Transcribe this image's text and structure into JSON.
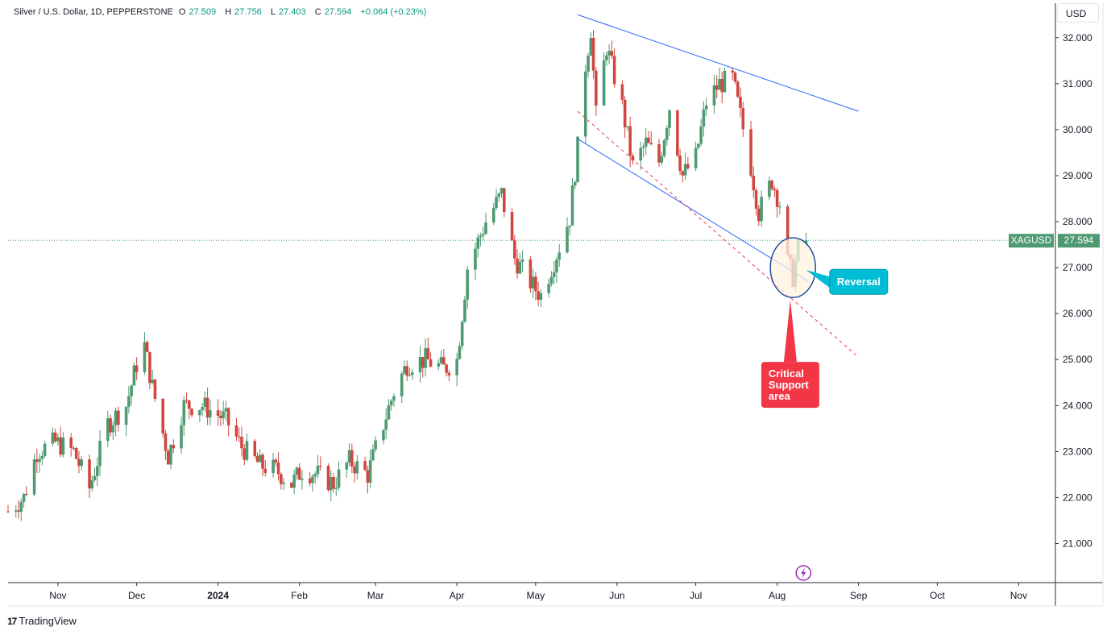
{
  "header": {
    "symbol_title": "Silver / U.S. Dollar, 1D, PEPPERSTONE",
    "open_label": "O",
    "open_value": "27.509",
    "high_label": "H",
    "high_value": "27.756",
    "low_label": "L",
    "low_value": "27.403",
    "close_label": "C",
    "close_value": "27.594",
    "change": "+0.064 (+0.23%)"
  },
  "currency_button": "USD",
  "branding": "TradingView",
  "colors": {
    "up": "#4f9a73",
    "down": "#d0473f",
    "trendline": "#2962ff",
    "support_dashed": "#f23645",
    "reversal_callout": "#00bcd4",
    "support_callout": "#f23645",
    "last_price_tag": "#4f9a73"
  },
  "chart_data": {
    "type": "candlestick",
    "symbol": "XAGUSD",
    "last_price": "27.594",
    "y_ticks": [
      "32.000",
      "31.000",
      "30.000",
      "29.000",
      "28.000",
      "27.000",
      "26.000",
      "25.000",
      "24.000",
      "23.000",
      "22.000",
      "21.000"
    ],
    "ylim": [
      20.15,
      32.75
    ],
    "x_ticks": [
      "Nov",
      "Dec",
      "2024",
      "Feb",
      "Mar",
      "Apr",
      "May",
      "Jun",
      "Jul",
      "Aug",
      "Sep",
      "Oct",
      "Nov"
    ],
    "x_range": [
      "2023-10-13",
      "2024-11-15"
    ],
    "price_path": [
      [
        "2023-10-13",
        21.7
      ],
      [
        "2023-10-19",
        22.0
      ],
      [
        "2023-10-24",
        23.0
      ],
      [
        "2023-10-31",
        23.2
      ],
      [
        "2023-11-07",
        23.0
      ],
      [
        "2023-11-13",
        22.2
      ],
      [
        "2023-11-20",
        23.6
      ],
      [
        "2023-11-27",
        24.0
      ],
      [
        "2023-12-01",
        24.9
      ],
      [
        "2023-12-04",
        25.3
      ],
      [
        "2023-12-07",
        24.4
      ],
      [
        "2023-12-13",
        22.9
      ],
      [
        "2023-12-19",
        24.0
      ],
      [
        "2023-12-26",
        24.0
      ],
      [
        "2024-01-04",
        23.7
      ],
      [
        "2024-01-10",
        23.1
      ],
      [
        "2024-01-17",
        22.7
      ],
      [
        "2024-01-23",
        22.6
      ],
      [
        "2024-01-29",
        22.3
      ],
      [
        "2024-02-02",
        22.6
      ],
      [
        "2024-02-08",
        22.5
      ],
      [
        "2024-02-14",
        22.3
      ],
      [
        "2024-02-20",
        22.8
      ],
      [
        "2024-02-27",
        22.5
      ],
      [
        "2024-03-04",
        23.6
      ],
      [
        "2024-03-08",
        24.3
      ],
      [
        "2024-03-13",
        24.9
      ],
      [
        "2024-03-20",
        25.0
      ],
      [
        "2024-03-27",
        24.8
      ],
      [
        "2024-04-01",
        25.0
      ],
      [
        "2024-04-05",
        27.0
      ],
      [
        "2024-04-12",
        28.0
      ],
      [
        "2024-04-18",
        28.6
      ],
      [
        "2024-04-23",
        27.2
      ],
      [
        "2024-04-30",
        26.6
      ],
      [
        "2024-05-03",
        26.4
      ],
      [
        "2024-05-09",
        27.3
      ],
      [
        "2024-05-14",
        28.1
      ],
      [
        "2024-05-17",
        29.6
      ],
      [
        "2024-05-20",
        31.4
      ],
      [
        "2024-05-22",
        32.2
      ],
      [
        "2024-05-24",
        30.3
      ],
      [
        "2024-05-28",
        31.8
      ],
      [
        "2024-06-03",
        30.5
      ],
      [
        "2024-06-07",
        29.2
      ],
      [
        "2024-06-12",
        29.7
      ],
      [
        "2024-06-17",
        29.3
      ],
      [
        "2024-06-21",
        30.5
      ],
      [
        "2024-06-26",
        29.0
      ],
      [
        "2024-07-01",
        29.4
      ],
      [
        "2024-07-05",
        30.6
      ],
      [
        "2024-07-10",
        31.0
      ],
      [
        "2024-07-15",
        31.1
      ],
      [
        "2024-07-18",
        30.3
      ],
      [
        "2024-07-22",
        29.2
      ],
      [
        "2024-07-25",
        28.2
      ],
      [
        "2024-07-30",
        28.9
      ],
      [
        "2024-08-02",
        28.4
      ],
      [
        "2024-08-05",
        27.1
      ],
      [
        "2024-08-07",
        26.8
      ],
      [
        "2024-08-09",
        27.4
      ],
      [
        "2024-08-12",
        27.594
      ]
    ],
    "annotations": [
      {
        "text": "Reversal"
      },
      {
        "text": "Critical Support area"
      }
    ]
  }
}
